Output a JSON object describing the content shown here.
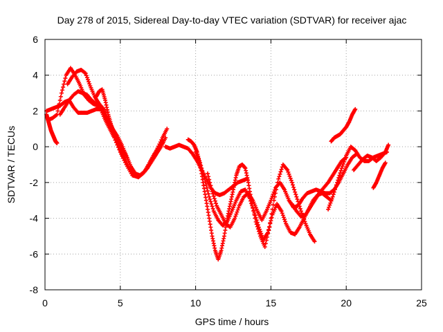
{
  "chart_data": {
    "type": "scatter",
    "title": "Day 278 of 2015, Sidereal Day-to-day VTEC variation (SDTVAR) for receiver ajac",
    "xlabel": "GPS time / hours",
    "ylabel": "SDTVAR / TECUs",
    "xlim": [
      0,
      25
    ],
    "ylim": [
      -8,
      6
    ],
    "xticks": [
      0,
      5,
      10,
      15,
      20,
      25
    ],
    "xtick_labels": [
      "0",
      "5",
      "10",
      "15",
      "20",
      "25"
    ],
    "yticks": [
      -8,
      -6,
      -4,
      -2,
      0,
      2,
      4,
      6
    ],
    "ytick_labels": [
      "-8",
      "-6",
      "-4",
      "-2",
      "0",
      "2",
      "4",
      "6"
    ],
    "grid": true,
    "marker": "+",
    "color": "#ff0000",
    "series": [
      {
        "name": "track-1",
        "x": [
          0.1,
          0.4,
          0.7,
          1.0,
          1.3,
          1.6,
          1.9,
          2.2,
          2.5,
          2.8,
          3.1,
          3.4,
          3.7,
          4.0,
          4.3,
          4.6,
          5.0,
          5.4,
          5.8,
          6.2,
          6.6,
          7.0,
          7.4,
          7.8,
          8.1
        ],
        "y": [
          2.0,
          2.1,
          2.2,
          2.3,
          2.5,
          2.6,
          2.2,
          1.9,
          1.9,
          1.9,
          2.0,
          2.1,
          2.1,
          1.5,
          1.0,
          0.5,
          -0.3,
          -1.0,
          -1.6,
          -1.7,
          -1.4,
          -0.8,
          -0.2,
          0.5,
          1.0
        ]
      },
      {
        "name": "track-2",
        "x": [
          0.2,
          0.5,
          0.8,
          1.1,
          1.4,
          1.7,
          2.0,
          2.3,
          2.6,
          2.9,
          3.2,
          3.5,
          3.8,
          4.1,
          4.4,
          4.7,
          5.0,
          5.3,
          5.6,
          5.9,
          6.2,
          6.5,
          6.8,
          7.1,
          7.4,
          7.7,
          8.0
        ],
        "y": [
          1.5,
          1.6,
          1.8,
          3.0,
          4.0,
          4.4,
          4.0,
          3.5,
          2.9,
          2.6,
          2.4,
          2.3,
          2.1,
          1.6,
          1.0,
          0.5,
          0.0,
          -0.6,
          -1.2,
          -1.6,
          -1.7,
          -1.5,
          -1.2,
          -0.8,
          -0.4,
          0.0,
          0.5
        ]
      },
      {
        "name": "track-3",
        "x": [
          1.5,
          1.8,
          2.1,
          2.4,
          2.7,
          3.0,
          3.3,
          3.6,
          3.9,
          4.2,
          4.5,
          4.8,
          5.1,
          5.4,
          5.7,
          6.0,
          6.3,
          6.6,
          6.9,
          7.2,
          7.5,
          7.8
        ],
        "y": [
          3.5,
          3.9,
          4.2,
          4.3,
          4.1,
          3.4,
          2.8,
          2.4,
          2.1,
          1.5,
          1.0,
          0.6,
          0.1,
          -0.5,
          -1.1,
          -1.5,
          -1.6,
          -1.4,
          -1.0,
          -0.5,
          -0.1,
          0.2
        ]
      },
      {
        "name": "track-4",
        "x": [
          1.0,
          1.3,
          1.6,
          1.9,
          2.2,
          2.5,
          2.8,
          3.1,
          3.4,
          3.7,
          4.0,
          4.3,
          4.6,
          4.9,
          5.2,
          5.5
        ],
        "y": [
          1.8,
          2.2,
          2.6,
          2.9,
          3.1,
          3.0,
          2.9,
          2.6,
          2.4,
          2.1,
          1.8,
          1.3,
          0.8,
          0.3,
          -0.2,
          -0.7
        ]
      },
      {
        "name": "track-5",
        "x": [
          3.4,
          3.6,
          3.8,
          4.0,
          4.2,
          4.4,
          4.6,
          4.8,
          5.0,
          5.2
        ],
        "y": [
          2.8,
          3.1,
          3.2,
          2.6,
          1.8,
          1.2,
          0.7,
          0.3,
          -0.2,
          -0.6
        ]
      },
      {
        "name": "track-6",
        "x": [
          0.1,
          0.2,
          0.3,
          0.4,
          0.5,
          0.6,
          0.7,
          0.8
        ],
        "y": [
          1.8,
          1.5,
          1.2,
          0.9,
          0.7,
          0.5,
          0.3,
          0.2
        ]
      },
      {
        "name": "track-7",
        "x": [
          8.0,
          8.3,
          8.6,
          8.9,
          9.2,
          9.5,
          9.8,
          10.1,
          10.4,
          10.7,
          11.0,
          11.3,
          11.6,
          11.9,
          12.2,
          12.5,
          12.8,
          13.1,
          13.4
        ],
        "y": [
          0.0,
          -0.1,
          0.0,
          0.1,
          0.0,
          -0.1,
          -0.4,
          -0.8,
          -1.3,
          -1.8,
          -2.3,
          -2.6,
          -2.7,
          -2.6,
          -2.4,
          -2.2,
          -2.0,
          -1.9,
          -1.8
        ]
      },
      {
        "name": "track-8",
        "x": [
          9.5,
          9.7,
          9.9,
          10.1,
          10.3,
          10.5,
          10.7,
          10.9,
          11.1,
          11.3,
          11.5,
          11.7,
          11.9,
          12.1,
          12.3,
          12.5,
          12.7,
          12.9,
          13.1,
          13.3,
          13.5,
          13.7,
          14.0,
          14.3,
          14.6,
          14.9,
          15.2,
          15.5,
          15.8,
          16.1,
          16.4,
          16.7,
          17.0,
          17.3,
          17.6,
          17.9
        ],
        "y": [
          0.4,
          0.3,
          0.1,
          -0.3,
          -1.0,
          -2.0,
          -3.0,
          -4.0,
          -5.0,
          -5.8,
          -6.3,
          -5.8,
          -5.0,
          -4.0,
          -3.2,
          -2.4,
          -1.6,
          -1.1,
          -1.0,
          -1.2,
          -2.0,
          -3.0,
          -4.2,
          -5.0,
          -5.6,
          -4.5,
          -3.0,
          -1.8,
          -1.0,
          -1.3,
          -2.0,
          -2.8,
          -3.6,
          -4.3,
          -4.9,
          -5.3
        ]
      },
      {
        "name": "track-9",
        "x": [
          10.0,
          10.3,
          10.6,
          10.9,
          11.2,
          11.5,
          11.8,
          12.1,
          12.4,
          12.7,
          13.0,
          13.3,
          13.6,
          13.9,
          14.2,
          14.5,
          14.8,
          15.1,
          15.4,
          15.7,
          16.0,
          16.3,
          16.6,
          16.9,
          17.2,
          17.5,
          17.8,
          18.1,
          18.4,
          18.7,
          19.0
        ],
        "y": [
          -0.3,
          -0.9,
          -1.8,
          -2.8,
          -3.6,
          -4.1,
          -4.4,
          -4.2,
          -3.6,
          -3.0,
          -2.5,
          -2.4,
          -2.9,
          -3.7,
          -4.5,
          -5.2,
          -4.8,
          -3.8,
          -3.2,
          -3.6,
          -4.3,
          -4.8,
          -4.9,
          -4.5,
          -4.0,
          -3.5,
          -3.0,
          -2.7,
          -2.6,
          -2.8,
          -3.0
        ]
      },
      {
        "name": "track-10",
        "x": [
          10.8,
          11.1,
          11.4,
          11.7,
          12.0,
          12.3,
          12.6,
          12.9,
          13.2,
          13.5,
          13.8,
          14.1,
          14.4,
          14.7,
          15.0,
          15.3,
          15.6,
          15.9,
          16.2,
          16.5,
          16.8,
          17.1,
          17.4,
          17.7,
          18.0,
          18.3,
          18.6,
          18.9,
          19.2,
          19.5,
          19.8,
          20.1,
          20.4,
          20.7
        ],
        "y": [
          -1.5,
          -2.5,
          -3.3,
          -3.8,
          -4.3,
          -4.5,
          -4.0,
          -3.3,
          -2.8,
          -2.6,
          -3.0,
          -3.6,
          -4.1,
          -3.6,
          -3.0,
          -2.3,
          -2.0,
          -2.4,
          -3.0,
          -3.4,
          -3.3,
          -2.9,
          -2.6,
          -2.5,
          -2.4,
          -2.5,
          -2.6,
          -2.6,
          -2.4,
          -2.0,
          -1.5,
          -1.0,
          -0.6,
          -0.4
        ]
      },
      {
        "name": "track-11",
        "x": [
          18.8,
          19.1,
          19.4,
          19.7,
          20.0,
          20.3,
          20.6,
          20.9,
          21.2,
          21.5,
          21.8,
          22.1,
          22.4,
          22.7
        ],
        "y": [
          -3.5,
          -2.8,
          -2.0,
          -1.2,
          -0.5,
          0.0,
          -0.2,
          -0.6,
          -0.8,
          -0.8,
          -0.6,
          -0.5,
          -0.4,
          -0.3
        ]
      },
      {
        "name": "track-12",
        "x": [
          19.0,
          19.2,
          19.4,
          19.6,
          19.8,
          20.0,
          20.2,
          20.4,
          20.6
        ],
        "y": [
          0.3,
          0.5,
          0.6,
          0.7,
          0.9,
          1.1,
          1.4,
          1.8,
          2.1
        ]
      },
      {
        "name": "track-13",
        "x": [
          20.5,
          20.8,
          21.1,
          21.4,
          21.7,
          22.0,
          22.3,
          22.6,
          22.8
        ],
        "y": [
          -1.3,
          -1.0,
          -0.7,
          -0.5,
          -0.6,
          -0.8,
          -0.6,
          -0.3,
          0.1
        ]
      },
      {
        "name": "track-14",
        "x": [
          21.8,
          22.0,
          22.2,
          22.4,
          22.6
        ],
        "y": [
          -2.3,
          -2.0,
          -1.6,
          -1.2,
          -0.9
        ]
      },
      {
        "name": "track-15",
        "x": [
          16.4,
          16.7,
          17.0,
          17.3,
          17.6,
          17.9,
          18.2,
          18.5,
          18.8,
          19.1,
          19.4,
          19.7,
          20.0
        ],
        "y": [
          -3.2,
          -3.6,
          -3.9,
          -3.8,
          -3.4,
          -3.0,
          -2.6,
          -2.3,
          -2.0,
          -1.6,
          -1.2,
          -0.8,
          -0.6
        ]
      }
    ]
  }
}
